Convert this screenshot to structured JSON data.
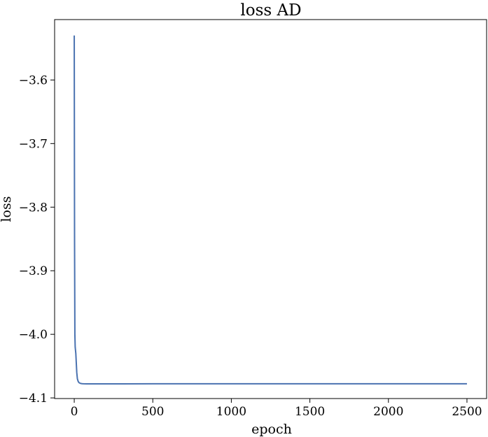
{
  "chart_data": {
    "type": "line",
    "title": "loss AD",
    "xlabel": "epoch",
    "ylabel": "loss",
    "xlim": [
      -125,
      2625
    ],
    "ylim": [
      -4.101,
      -3.505
    ],
    "xticks": [
      0,
      500,
      1000,
      1500,
      2000,
      2500
    ],
    "xtick_labels": [
      "0",
      "500",
      "1000",
      "1500",
      "2000",
      "2500"
    ],
    "yticks": [
      -3.6,
      -3.7,
      -3.8,
      -3.9,
      -4.0,
      -4.1
    ],
    "ytick_labels": [
      "−3.6",
      "−3.7",
      "−3.8",
      "−3.9",
      "−4.0",
      "−4.1"
    ],
    "grid": false,
    "legend": "none",
    "series": [
      {
        "color": "#4a72b0",
        "x": [
          0,
          2,
          4,
          6,
          8,
          10,
          13,
          16,
          20,
          25,
          30,
          40,
          50,
          60,
          80,
          100,
          150,
          200,
          300,
          500,
          750,
          1000,
          1250,
          1500,
          1750,
          2000,
          2250,
          2500
        ],
        "y": [
          -3.53,
          -3.85,
          -4.0,
          -4.02,
          -4.025,
          -4.03,
          -4.045,
          -4.06,
          -4.07,
          -4.074,
          -4.076,
          -4.0772,
          -4.0776,
          -4.0778,
          -4.0779,
          -4.0779,
          -4.0779,
          -4.0779,
          -4.0779,
          -4.0778,
          -4.0778,
          -4.0778,
          -4.0778,
          -4.0778,
          -4.0778,
          -4.0778,
          -4.0778,
          -4.0778
        ]
      }
    ]
  }
}
